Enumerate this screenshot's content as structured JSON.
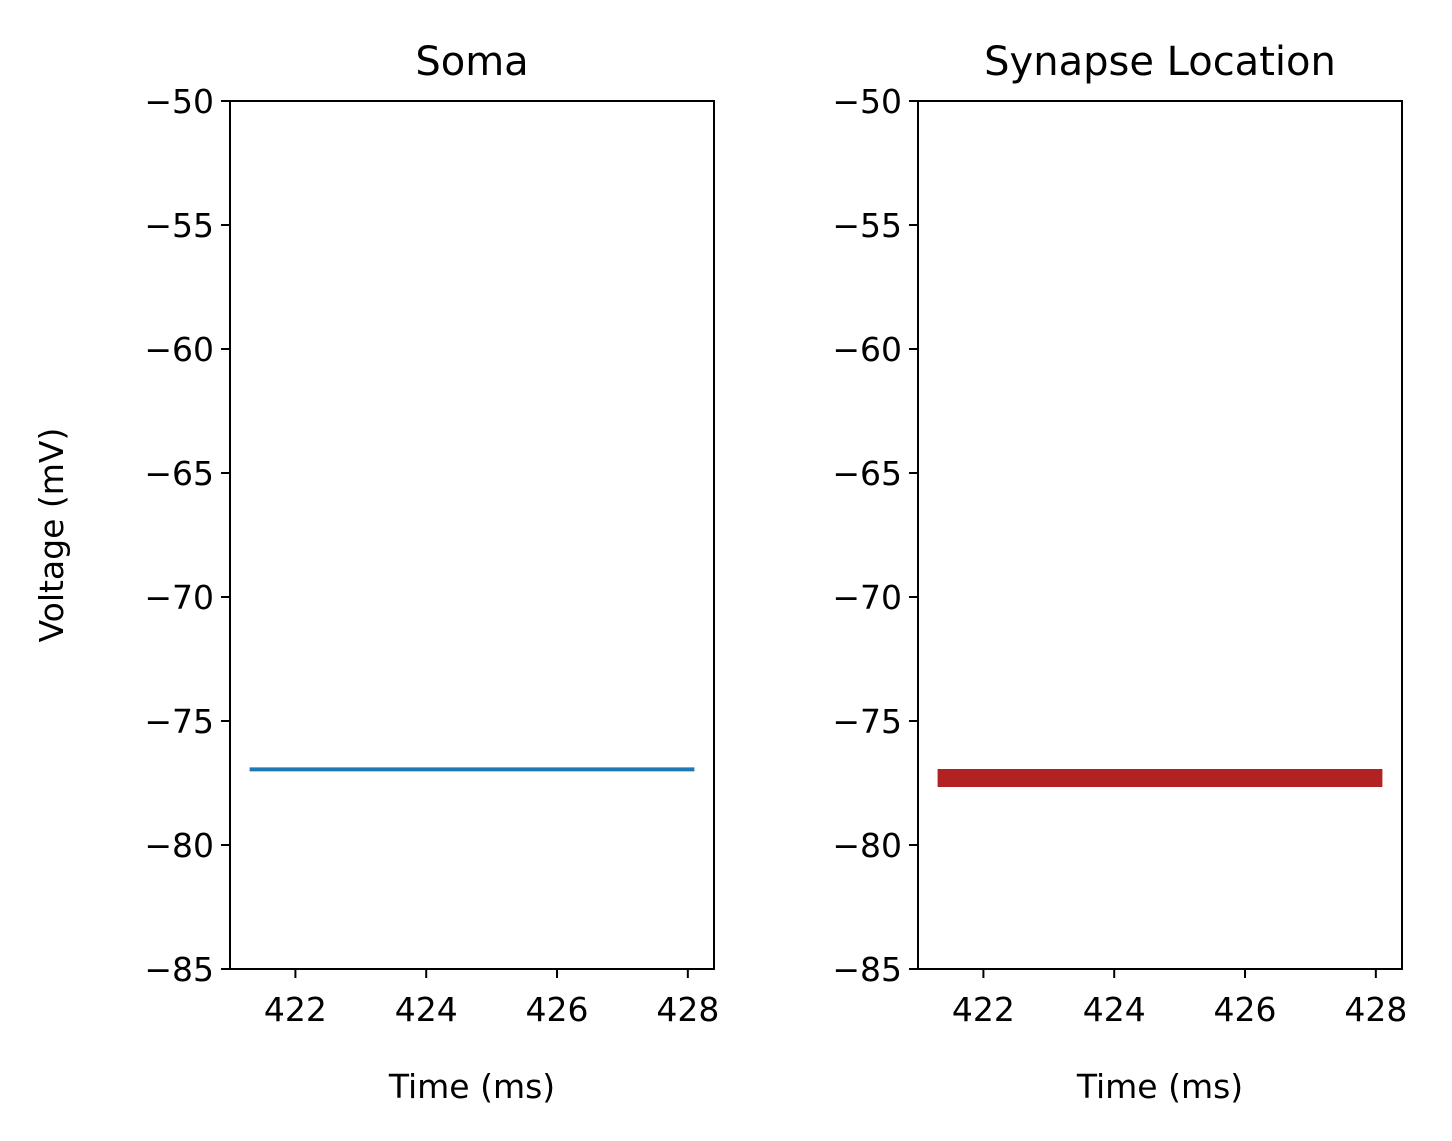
{
  "chart_data": [
    {
      "type": "line",
      "title": "Soma",
      "xlabel": "Time (ms)",
      "ylabel": "Voltage (mV)",
      "xlim": [
        421.0,
        428.4
      ],
      "ylim": [
        -85,
        -50
      ],
      "xticks": [
        422,
        424,
        426,
        428
      ],
      "xtick_labels": [
        "422",
        "424",
        "426",
        "428"
      ],
      "yticks": [
        -50,
        -55,
        -60,
        -65,
        -70,
        -75,
        -80,
        -85
      ],
      "ytick_labels": [
        "−50",
        "−55",
        "−60",
        "−65",
        "−70",
        "−75",
        "−80",
        "−85"
      ],
      "grid": false,
      "series": [
        {
          "color": "#1f77b4",
          "x": [
            421.3,
            428.1
          ],
          "y": [
            -76.95,
            -76.95
          ]
        }
      ]
    },
    {
      "type": "line",
      "title": "Synapse Location",
      "xlabel": "Time (ms)",
      "ylabel": "",
      "xlim": [
        421.0,
        428.4
      ],
      "ylim": [
        -85,
        -50
      ],
      "xticks": [
        422,
        424,
        426,
        428
      ],
      "xtick_labels": [
        "422",
        "424",
        "426",
        "428"
      ],
      "yticks": [
        -50,
        -55,
        -60,
        -65,
        -70,
        -75,
        -80,
        -85
      ],
      "ytick_labels": [
        "−50",
        "−55",
        "−60",
        "−65",
        "−70",
        "−75",
        "−80",
        "−85"
      ],
      "grid": false,
      "series": [
        {
          "color": "#b22222",
          "x": [
            421.3,
            428.1
          ],
          "y": [
            -77.3,
            -77.3
          ]
        }
      ]
    }
  ]
}
